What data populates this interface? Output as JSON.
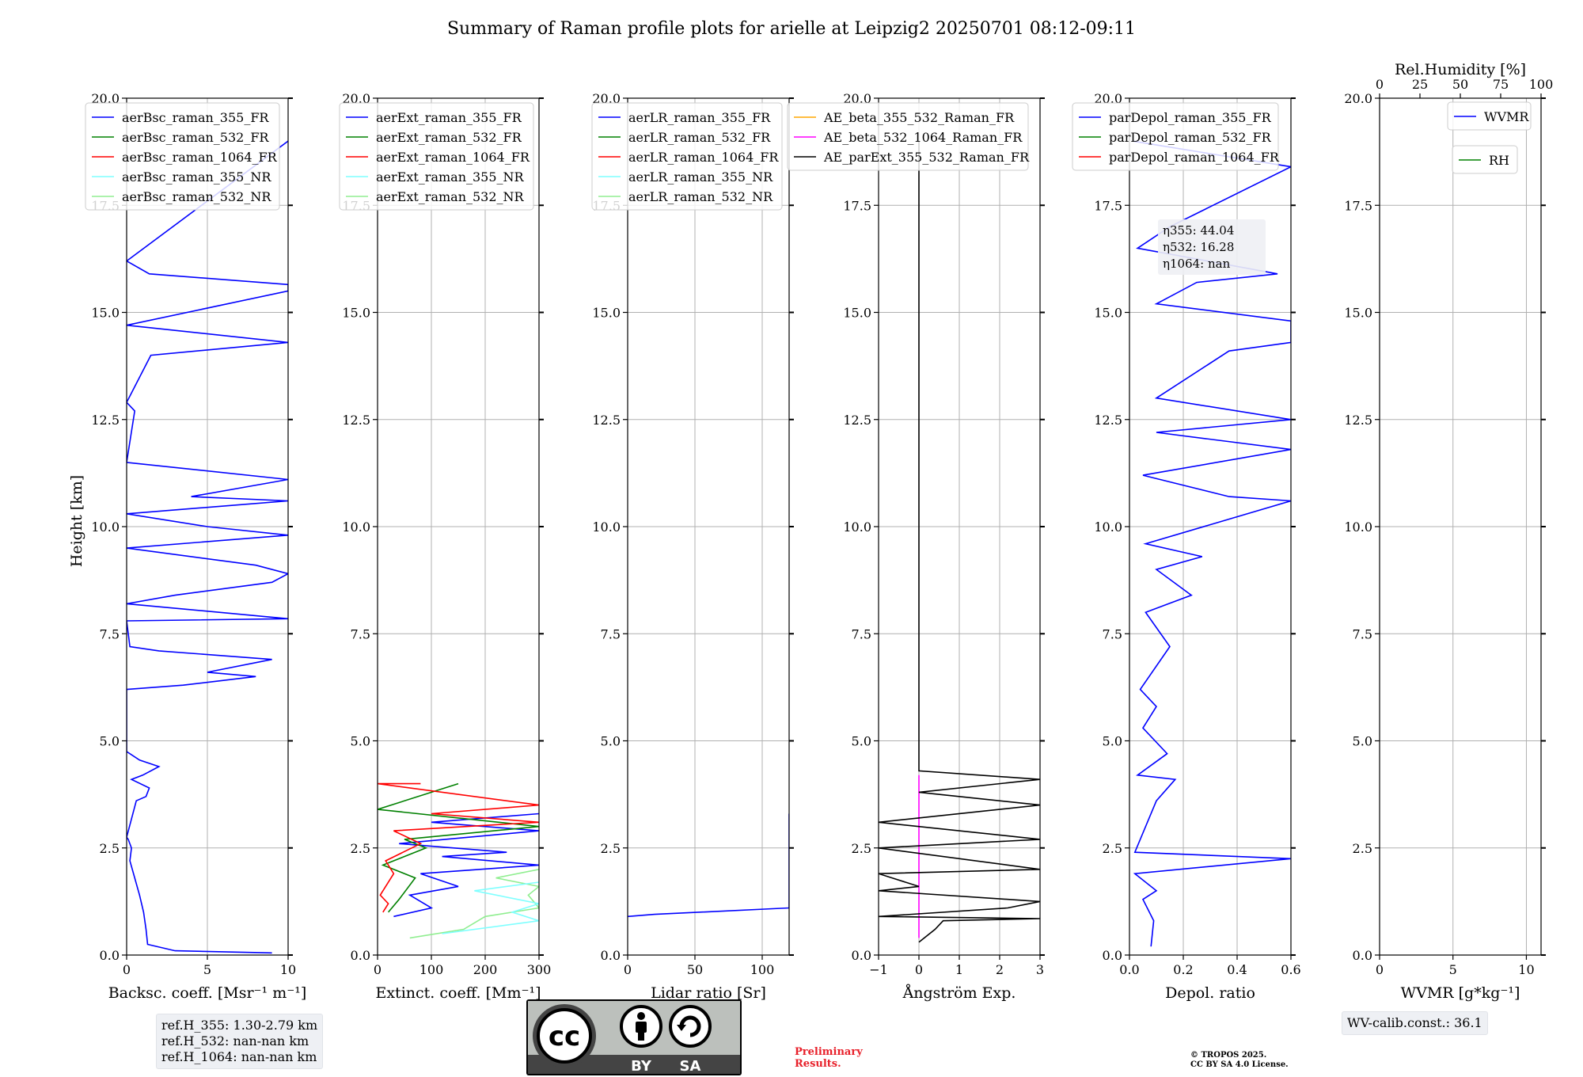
{
  "title": "Summary of Raman profile plots for arielle at Leipzig2 20250701 08:12-09:11",
  "y_axis_label": "Height [km]",
  "y_ticks": [
    "0.0",
    "2.5",
    "5.0",
    "7.5",
    "10.0",
    "12.5",
    "15.0",
    "17.5",
    "20.0"
  ],
  "chart_data": [
    {
      "type": "line",
      "id": "backscatter",
      "xlabel": "Backsc. coeff. [Msr⁻¹ m⁻¹]",
      "xlim": [
        0,
        10
      ],
      "ylim": [
        0,
        20
      ],
      "xticks": [
        {
          "v": 0,
          "t": "0"
        },
        {
          "v": 5,
          "t": "5"
        },
        {
          "v": 10,
          "t": "10"
        }
      ],
      "legend": [
        {
          "name": "aerBsc_raman_355_FR",
          "color": "#0000ff"
        },
        {
          "name": "aerBsc_raman_532_FR",
          "color": "#008000"
        },
        {
          "name": "aerBsc_raman_1064_FR",
          "color": "#ff0000"
        },
        {
          "name": "aerBsc_raman_355_NR",
          "color": "#7fffff"
        },
        {
          "name": "aerBsc_raman_532_NR",
          "color": "#90ee90"
        }
      ],
      "series": [
        {
          "name": "aerBsc_raman_355_FR",
          "color": "#0000ff",
          "points": [
            [
              9,
              0.05
            ],
            [
              3,
              0.1
            ],
            [
              1.3,
              0.25
            ],
            [
              1.2,
              0.6
            ],
            [
              1.05,
              1.0
            ],
            [
              0.8,
              1.4
            ],
            [
              0.5,
              1.8
            ],
            [
              0.2,
              2.2
            ],
            [
              0.3,
              2.5
            ],
            [
              0.1,
              2.7
            ],
            [
              0,
              2.75
            ],
            [
              0.6,
              3.6
            ],
            [
              1.2,
              3.7
            ],
            [
              1.4,
              3.9
            ],
            [
              0.3,
              4.1
            ],
            [
              1.0,
              4.2
            ],
            [
              2.0,
              4.4
            ],
            [
              0.8,
              4.55
            ],
            [
              0,
              4.75
            ],
            [
              0,
              5.7
            ],
            [
              0,
              6.2
            ],
            [
              3.5,
              6.3
            ],
            [
              8,
              6.5
            ],
            [
              5,
              6.6
            ],
            [
              9,
              6.9
            ],
            [
              2,
              7.1
            ],
            [
              0.2,
              7.2
            ],
            [
              0,
              7.8
            ],
            [
              10,
              7.85
            ],
            [
              0,
              8.2
            ],
            [
              3,
              8.4
            ],
            [
              9,
              8.7
            ],
            [
              10,
              8.9
            ],
            [
              8,
              9.1
            ],
            [
              0,
              9.5
            ],
            [
              10,
              9.8
            ],
            [
              5,
              10.0
            ],
            [
              0,
              10.3
            ],
            [
              10,
              10.6
            ],
            [
              4,
              10.7
            ],
            [
              10,
              11.1
            ],
            [
              0,
              11.5
            ],
            [
              0.5,
              12.7
            ],
            [
              0,
              12.9
            ],
            [
              1.5,
              14.0
            ],
            [
              10,
              14.3
            ],
            [
              0,
              14.7
            ],
            [
              10,
              15.5
            ],
            [
              10,
              15.65
            ],
            [
              1.4,
              15.9
            ],
            [
              0,
              16.2
            ],
            [
              10,
              19.0
            ]
          ]
        }
      ]
    },
    {
      "type": "line",
      "id": "extinction",
      "xlabel": "Extinct. coeff. [Mm⁻¹]",
      "xlim": [
        0,
        300
      ],
      "ylim": [
        0,
        20
      ],
      "xticks": [
        {
          "v": 0,
          "t": "0"
        },
        {
          "v": 100,
          "t": "100"
        },
        {
          "v": 200,
          "t": "200"
        },
        {
          "v": 300,
          "t": "300"
        }
      ],
      "legend": [
        {
          "name": "aerExt_raman_355_FR",
          "color": "#0000ff"
        },
        {
          "name": "aerExt_raman_532_FR",
          "color": "#008000"
        },
        {
          "name": "aerExt_raman_1064_FR",
          "color": "#ff0000"
        },
        {
          "name": "aerExt_raman_355_NR",
          "color": "#7fffff"
        },
        {
          "name": "aerExt_raman_532_NR",
          "color": "#90ee90"
        }
      ],
      "series": [
        {
          "name": "aerExt_raman_532_NR",
          "color": "#90ee90",
          "points": [
            [
              60,
              0.4
            ],
            [
              160,
              0.6
            ],
            [
              200,
              0.9
            ],
            [
              300,
              1.1
            ],
            [
              280,
              1.4
            ],
            [
              300,
              1.6
            ],
            [
              220,
              1.8
            ],
            [
              300,
              2.0
            ]
          ]
        },
        {
          "name": "aerExt_raman_355_NR",
          "color": "#7fffff",
          "points": [
            [
              120,
              0.5
            ],
            [
              300,
              0.8
            ],
            [
              250,
              1.0
            ],
            [
              300,
              1.2
            ],
            [
              180,
              1.5
            ],
            [
              300,
              1.7
            ]
          ]
        },
        {
          "name": "aerExt_raman_355_FR",
          "color": "#0000ff",
          "points": [
            [
              30,
              0.9
            ],
            [
              100,
              1.1
            ],
            [
              60,
              1.4
            ],
            [
              150,
              1.6
            ],
            [
              80,
              1.9
            ],
            [
              300,
              2.1
            ],
            [
              120,
              2.3
            ],
            [
              240,
              2.4
            ],
            [
              40,
              2.6
            ],
            [
              300,
              2.9
            ],
            [
              100,
              3.1
            ],
            [
              300,
              3.3
            ]
          ]
        },
        {
          "name": "aerExt_raman_532_FR",
          "color": "#008000",
          "points": [
            [
              20,
              1.0
            ],
            [
              40,
              1.3
            ],
            [
              70,
              1.8
            ],
            [
              10,
              2.1
            ],
            [
              90,
              2.5
            ],
            [
              50,
              2.7
            ],
            [
              300,
              3.0
            ],
            [
              150,
              3.2
            ],
            [
              0,
              3.4
            ],
            [
              150,
              4.0
            ]
          ]
        },
        {
          "name": "aerExt_raman_1064_FR",
          "color": "#ff0000",
          "points": [
            [
              10,
              1.0
            ],
            [
              20,
              1.2
            ],
            [
              5,
              1.4
            ],
            [
              30,
              1.9
            ],
            [
              15,
              2.2
            ],
            [
              80,
              2.6
            ],
            [
              30,
              2.9
            ],
            [
              300,
              3.1
            ],
            [
              100,
              3.3
            ],
            [
              300,
              3.5
            ],
            [
              0,
              4.0
            ],
            [
              80,
              4.0
            ]
          ]
        }
      ]
    },
    {
      "type": "line",
      "id": "lidar_ratio",
      "xlabel": "Lidar ratio [Sr]",
      "xlim": [
        0,
        120
      ],
      "ylim": [
        0,
        20
      ],
      "xticks": [
        {
          "v": 0,
          "t": "0"
        },
        {
          "v": 50,
          "t": "50"
        },
        {
          "v": 100,
          "t": "100"
        }
      ],
      "legend": [
        {
          "name": "aerLR_raman_355_FR",
          "color": "#0000ff"
        },
        {
          "name": "aerLR_raman_532_FR",
          "color": "#008000"
        },
        {
          "name": "aerLR_raman_1064_FR",
          "color": "#ff0000"
        },
        {
          "name": "aerLR_raman_355_NR",
          "color": "#7fffff"
        },
        {
          "name": "aerLR_raman_532_NR",
          "color": "#90ee90"
        }
      ],
      "series": [
        {
          "name": "aerLR_raman_355_FR",
          "color": "#0000ff",
          "points": [
            [
              0,
              0.9
            ],
            [
              20,
              0.95
            ],
            [
              120,
              1.1
            ],
            [
              120,
              1.3
            ],
            [
              120,
              1.5
            ],
            [
              120,
              1.6
            ],
            [
              120,
              1.7
            ],
            [
              120,
              1.8
            ],
            [
              120,
              1.9
            ],
            [
              120,
              2.0
            ],
            [
              120,
              2.3
            ],
            [
              120,
              2.5
            ],
            [
              120,
              2.7
            ],
            [
              120,
              2.9
            ],
            [
              120,
              3.1
            ],
            [
              120,
              3.3
            ]
          ]
        }
      ]
    },
    {
      "type": "line",
      "id": "angstrom",
      "xlabel": "Ångström Exp.",
      "xlim": [
        -1,
        3
      ],
      "ylim": [
        0,
        20
      ],
      "xticks": [
        {
          "v": -1,
          "t": "−1"
        },
        {
          "v": 0,
          "t": "0"
        },
        {
          "v": 1,
          "t": "1"
        },
        {
          "v": 2,
          "t": "2"
        },
        {
          "v": 3,
          "t": "3"
        }
      ],
      "legend": [
        {
          "name": "AE_beta_355_532_Raman_FR",
          "color": "#ffa500"
        },
        {
          "name": "AE_beta_532_1064_Raman_FR",
          "color": "#ff00ff"
        },
        {
          "name": "AE_parExt_355_532_Raman_FR",
          "color": "#000000"
        }
      ],
      "series": [
        {
          "name": "AE_beta_532_1064_Raman_FR",
          "color": "#ff00ff",
          "points": [
            [
              0,
              0.4
            ],
            [
              0,
              4.2
            ]
          ]
        },
        {
          "name": "AE_parExt_355_532_Raman_FR",
          "color": "#000000",
          "points": [
            [
              0,
              0.3
            ],
            [
              0.4,
              0.6
            ],
            [
              0.6,
              0.8
            ],
            [
              3,
              0.85
            ],
            [
              -1,
              0.9
            ],
            [
              2.2,
              1.1
            ],
            [
              3,
              1.25
            ],
            [
              -1,
              1.5
            ],
            [
              0,
              1.6
            ],
            [
              -1,
              1.9
            ],
            [
              3,
              2.0
            ],
            [
              -1,
              2.5
            ],
            [
              3,
              2.7
            ],
            [
              -1,
              3.1
            ],
            [
              3,
              3.5
            ],
            [
              0,
              3.8
            ],
            [
              3,
              4.1
            ],
            [
              0,
              4.3
            ],
            [
              0,
              19.0
            ]
          ]
        }
      ]
    },
    {
      "type": "line",
      "id": "depol",
      "xlabel": "Depol. ratio",
      "xlim": [
        0,
        0.6
      ],
      "ylim": [
        0,
        20
      ],
      "xticks": [
        {
          "v": 0,
          "t": "0.0"
        },
        {
          "v": 0.2,
          "t": "0.2"
        },
        {
          "v": 0.4,
          "t": "0.4"
        },
        {
          "v": 0.6,
          "t": "0.6"
        }
      ],
      "legend": [
        {
          "name": "parDepol_raman_355_FR",
          "color": "#0000ff"
        },
        {
          "name": "parDepol_raman_532_FR",
          "color": "#008000"
        },
        {
          "name": "parDepol_raman_1064_FR",
          "color": "#ff0000"
        }
      ],
      "annotation": [
        "η355: 44.04",
        "η532: 16.28",
        "η1064: nan"
      ],
      "series": [
        {
          "name": "parDepol_raman_355_FR",
          "color": "#0000ff",
          "points": [
            [
              0.08,
              0.2
            ],
            [
              0.09,
              0.8
            ],
            [
              0.05,
              1.3
            ],
            [
              0.1,
              1.5
            ],
            [
              0.02,
              1.9
            ],
            [
              0.6,
              2.25
            ],
            [
              0.02,
              2.4
            ],
            [
              0.1,
              3.6
            ],
            [
              0.17,
              4.1
            ],
            [
              0.03,
              4.2
            ],
            [
              0.14,
              4.7
            ],
            [
              0.05,
              5.3
            ],
            [
              0.1,
              5.8
            ],
            [
              0.04,
              6.2
            ],
            [
              0.15,
              7.2
            ],
            [
              0.06,
              8.0
            ],
            [
              0.23,
              8.4
            ],
            [
              0.1,
              9.0
            ],
            [
              0.27,
              9.3
            ],
            [
              0.06,
              9.6
            ],
            [
              0.6,
              10.6
            ],
            [
              0.37,
              10.7
            ],
            [
              0.05,
              11.2
            ],
            [
              0.6,
              11.8
            ],
            [
              0.1,
              12.2
            ],
            [
              0.6,
              12.5
            ],
            [
              0.1,
              13.0
            ],
            [
              0.37,
              14.1
            ],
            [
              0.6,
              14.3
            ],
            [
              0.6,
              14.8
            ],
            [
              0.1,
              15.2
            ],
            [
              0.25,
              15.7
            ],
            [
              0.55,
              15.9
            ],
            [
              0.03,
              16.5
            ],
            [
              0.15,
              17.0
            ],
            [
              0.6,
              18.4
            ],
            [
              0.01,
              19.0
            ]
          ]
        }
      ]
    },
    {
      "type": "line",
      "id": "wvmr",
      "xlabel": "WVMR [g*kg⁻¹]",
      "xlim": [
        0,
        11
      ],
      "ylim": [
        0,
        20
      ],
      "xticks": [
        {
          "v": 0,
          "t": "0"
        },
        {
          "v": 5,
          "t": "5"
        },
        {
          "v": 10,
          "t": "10"
        }
      ],
      "top_xlabel": "Rel.Humidity [%]",
      "top_xlim": [
        0,
        100
      ],
      "top_xticks": [
        {
          "v": 0,
          "t": "0"
        },
        {
          "v": 25,
          "t": "25"
        },
        {
          "v": 50,
          "t": "50"
        },
        {
          "v": 75,
          "t": "75"
        },
        {
          "v": 100,
          "t": "100"
        }
      ],
      "legend": [
        {
          "name": "WVMR",
          "color": "#0000ff"
        }
      ],
      "legend2": [
        {
          "name": "RH",
          "color": "#008000"
        }
      ],
      "series": []
    }
  ],
  "info": {
    "refh_355": "ref.H_355: 1.30-2.79 km",
    "refh_532": "ref.H_532: nan-nan km",
    "refh_1064": "ref.H_1064: nan-nan km",
    "wv_calib": "WV-calib.const.: 36.1",
    "preliminary_1": "Preliminary",
    "preliminary_2": "Results.",
    "copyright_1": "© TROPOS 2025.",
    "copyright_2": "CC BY SA 4.0 License."
  },
  "cc_badge": {
    "label_by": "BY",
    "label_sa": "SA",
    "label_cc": "cc"
  }
}
